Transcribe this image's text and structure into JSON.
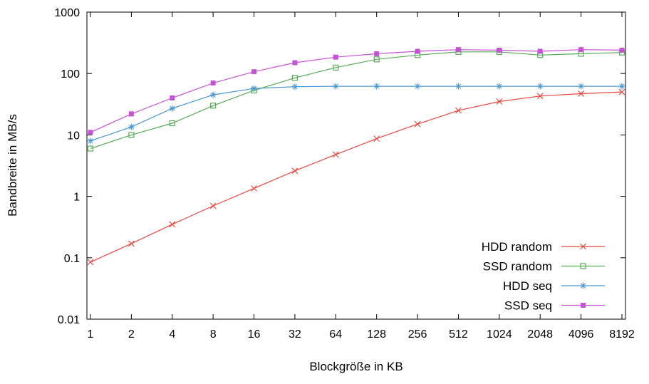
{
  "chart_data": {
    "type": "line",
    "title": "",
    "xlabel": "Blockgröße in KB",
    "ylabel": "Bandbreite in MB/s",
    "x_scale": "log2",
    "y_scale": "log10",
    "xlim": [
      1,
      8192
    ],
    "ylim": [
      0.01,
      1000
    ],
    "x_ticks": [
      1,
      2,
      4,
      8,
      16,
      32,
      64,
      128,
      256,
      512,
      1024,
      2048,
      4096,
      8192
    ],
    "y_ticks": [
      0.01,
      0.1,
      1,
      10,
      100,
      1000
    ],
    "grid": false,
    "legend_position": "bottom-right-inside",
    "x": [
      1,
      2,
      4,
      8,
      16,
      32,
      64,
      128,
      256,
      512,
      1024,
      2048,
      4096,
      8192
    ],
    "series": [
      {
        "name": "HDD random",
        "color": "#e8483f",
        "marker": "x",
        "values": [
          0.085,
          0.17,
          0.35,
          0.7,
          1.35,
          2.6,
          4.8,
          8.7,
          15,
          25,
          35,
          43,
          47,
          50
        ]
      },
      {
        "name": "SSD random",
        "color": "#57ab57",
        "marker": "open-square",
        "values": [
          6,
          10,
          15.5,
          30,
          53,
          85,
          125,
          170,
          200,
          225,
          225,
          200,
          210,
          220
        ]
      },
      {
        "name": "HDD seq",
        "color": "#4a97d2",
        "marker": "asterisk",
        "values": [
          8,
          13.5,
          27,
          45,
          57,
          61,
          62,
          62,
          62,
          62,
          62,
          62,
          62,
          62
        ]
      },
      {
        "name": "SSD seq",
        "color": "#c653d6",
        "marker": "filled-square",
        "values": [
          11,
          22,
          40,
          70,
          107,
          150,
          185,
          210,
          230,
          245,
          240,
          230,
          245,
          240
        ]
      }
    ]
  }
}
